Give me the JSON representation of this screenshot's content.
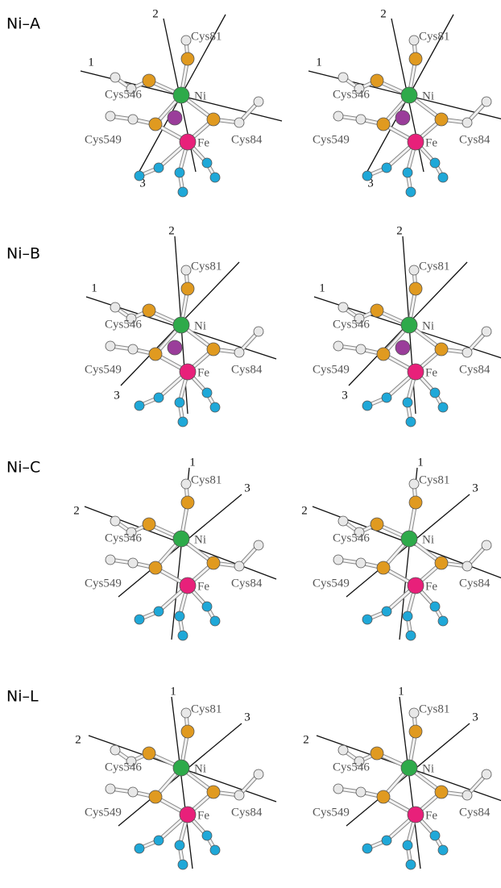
{
  "panels": [
    {
      "label": "Ni–A",
      "views": [
        {
          "axes": [
            "1",
            "2",
            "3"
          ],
          "atoms": [
            "Ni",
            "Fe"
          ],
          "residues": [
            "Cys81",
            "Cys546",
            "Cys549",
            "Cys84"
          ]
        },
        {
          "axes": [
            "1",
            "2",
            "3"
          ],
          "atoms": [
            "Ni",
            "Fe"
          ],
          "residues": [
            "Cys81",
            "Cys546",
            "Cys549",
            "Cys84"
          ]
        }
      ]
    },
    {
      "label": "Ni–B",
      "views": [
        {
          "axes": [
            "1",
            "2",
            "3"
          ],
          "atoms": [
            "Ni",
            "Fe"
          ],
          "residues": [
            "Cys81",
            "Cys546",
            "Cys549",
            "Cys84"
          ]
        },
        {
          "axes": [
            "1",
            "2",
            "3"
          ],
          "atoms": [
            "Ni",
            "Fe"
          ],
          "residues": [
            "Cys81",
            "Cys546",
            "Cys549",
            "Cys84"
          ]
        }
      ]
    },
    {
      "label": "Ni–C",
      "views": [
        {
          "axes": [
            "1",
            "2",
            "3"
          ],
          "atoms": [
            "Ni",
            "Fe"
          ],
          "residues": [
            "Cys81",
            "Cys546",
            "Cys549",
            "Cys84"
          ]
        },
        {
          "axes": [
            "1",
            "2",
            "3"
          ],
          "atoms": [
            "Ni",
            "Fe"
          ],
          "residues": [
            "Cys81",
            "Cys546",
            "Cys549",
            "Cys84"
          ]
        }
      ]
    },
    {
      "label": "Ni–L",
      "views": [
        {
          "axes": [
            "1",
            "2",
            "3"
          ],
          "atoms": [
            "Ni",
            "Fe"
          ],
          "residues": [
            "Cys81",
            "Cys546",
            "Cys549",
            "Cys84"
          ]
        },
        {
          "axes": [
            "1",
            "2",
            "3"
          ],
          "atoms": [
            "Ni",
            "Fe"
          ],
          "residues": [
            "Cys81",
            "Cys546",
            "Cys549",
            "Cys84"
          ]
        }
      ]
    }
  ]
}
